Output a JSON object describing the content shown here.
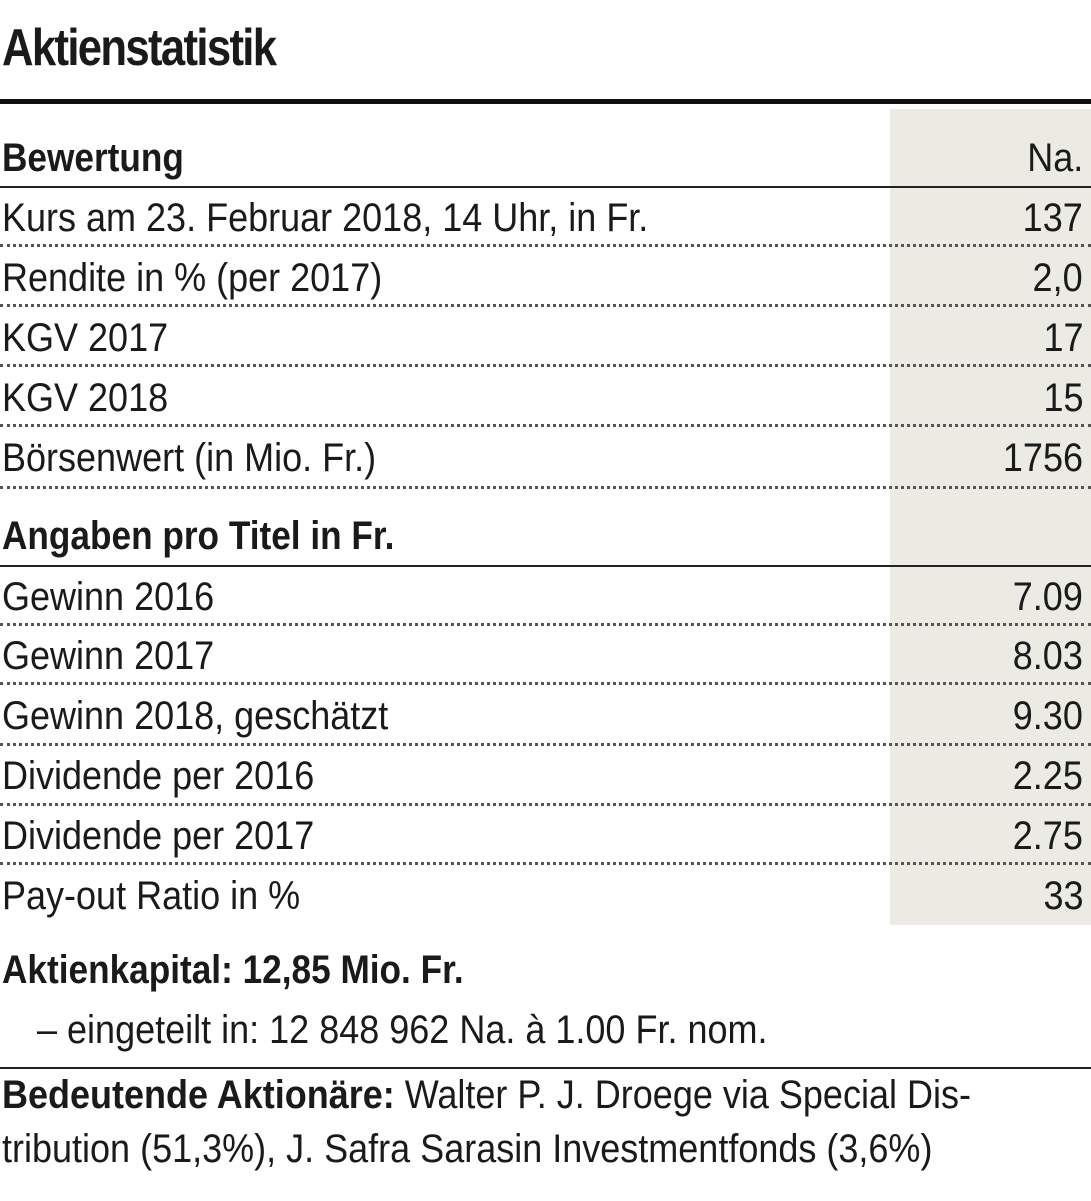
{
  "title": "Aktienstatistik",
  "section1": {
    "label": "Bewertung",
    "column_header": "Na.",
    "rows": [
      {
        "label": "Kurs am 23. Februar 2018, 14 Uhr, in Fr.",
        "value": "137"
      },
      {
        "label": "Rendite in % (per 2017)",
        "value": "2,0"
      },
      {
        "label": "KGV 2017",
        "value": "17"
      },
      {
        "label": "KGV 2018",
        "value": "15"
      },
      {
        "label": "Börsenwert (in Mio. Fr.)",
        "value": "1756"
      }
    ]
  },
  "section2": {
    "label": "Angaben pro Titel in Fr.",
    "rows": [
      {
        "label": "Gewinn 2016",
        "value": "7.09"
      },
      {
        "label": "Gewinn 2017",
        "value": "8.03"
      },
      {
        "label": "Gewinn 2018, geschätzt",
        "value": "9.30"
      },
      {
        "label": "Dividende per 2016",
        "value": "2.25"
      },
      {
        "label": "Dividende per 2017",
        "value": "2.75"
      },
      {
        "label": "Pay-out Ratio in %",
        "value": "33"
      }
    ]
  },
  "footer": {
    "capital": "Aktienkapital: 12,85 Mio. Fr.",
    "division": "– eingeteilt in: 12 848 962 Na. à 1.00 Fr. nom.",
    "shareholders_label": "Bedeutende Aktionäre:",
    "shareholders_line1": " Walter P. J. Droege via Special Dis-",
    "shareholders_line2": "tribution (51,3%), J. Safra Sarasin Investmentfonds (3,6%)"
  }
}
